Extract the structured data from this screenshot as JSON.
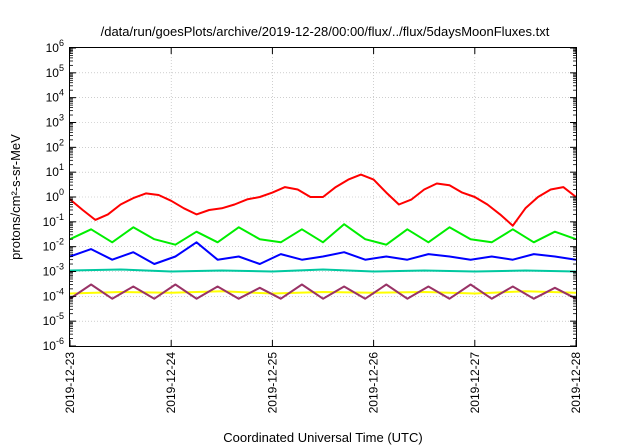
{
  "chart_data": {
    "type": "line",
    "title": "/data/run/goesPlots/archive/2019-12-28/00:00/flux/../flux/5daysMoonFluxes.txt",
    "xlabel": "Coordinated Universal Time (UTC)",
    "ylabel": "protons/cm²-s-sr-MeV",
    "y_scale": "log",
    "ylim": [
      1e-06,
      1000000.0
    ],
    "xlim": [
      "2019-12-23",
      "2019-12-28"
    ],
    "x_ticks": [
      "2019-12-23",
      "2019-12-24",
      "2019-12-25",
      "2019-12-26",
      "2019-12-27",
      "2019-12-28"
    ],
    "y_ticks": [
      {
        "base": "10",
        "exp": "-6"
      },
      {
        "base": "10",
        "exp": "-5"
      },
      {
        "base": "10",
        "exp": "-4"
      },
      {
        "base": "10",
        "exp": "-3"
      },
      {
        "base": "10",
        "exp": "-2"
      },
      {
        "base": "10",
        "exp": "-1"
      },
      {
        "base": "10",
        "exp": "0"
      },
      {
        "base": "10",
        "exp": "1"
      },
      {
        "base": "10",
        "exp": "2"
      },
      {
        "base": "10",
        "exp": "3"
      },
      {
        "base": "10",
        "exp": "4"
      },
      {
        "base": "10",
        "exp": "5"
      },
      {
        "base": "10",
        "exp": "6"
      }
    ],
    "grid": true,
    "legend": "none",
    "series": [
      {
        "color": "#ff0000",
        "x": [
          "2019-12-23 00:00",
          "2019-12-23 03:00",
          "2019-12-23 06:00",
          "2019-12-23 09:00",
          "2019-12-23 12:00",
          "2019-12-23 15:00",
          "2019-12-23 18:00",
          "2019-12-23 21:00",
          "2019-12-24 00:00",
          "2019-12-24 03:00",
          "2019-12-24 06:00",
          "2019-12-24 09:00",
          "2019-12-24 12:00",
          "2019-12-24 15:00",
          "2019-12-24 18:00",
          "2019-12-24 21:00",
          "2019-12-25 00:00",
          "2019-12-25 03:00",
          "2019-12-25 06:00",
          "2019-12-25 09:00",
          "2019-12-25 12:00",
          "2019-12-25 15:00",
          "2019-12-25 18:00",
          "2019-12-25 21:00",
          "2019-12-26 00:00",
          "2019-12-26 03:00",
          "2019-12-26 06:00",
          "2019-12-26 09:00",
          "2019-12-26 12:00",
          "2019-12-26 15:00",
          "2019-12-26 18:00",
          "2019-12-26 21:00",
          "2019-12-27 00:00",
          "2019-12-27 03:00",
          "2019-12-27 06:00",
          "2019-12-27 09:00",
          "2019-12-27 12:00",
          "2019-12-27 15:00",
          "2019-12-27 18:00",
          "2019-12-27 21:00",
          "2019-12-28 00:00"
        ],
        "y": [
          0.8,
          0.3,
          0.12,
          0.2,
          0.5,
          0.9,
          1.4,
          1.2,
          0.7,
          0.35,
          0.2,
          0.3,
          0.35,
          0.5,
          0.8,
          1.0,
          1.5,
          2.5,
          2.0,
          1.0,
          1.0,
          2.5,
          5.0,
          8.0,
          5.0,
          1.5,
          0.5,
          0.8,
          2.0,
          3.5,
          3.0,
          1.5,
          1.0,
          0.5,
          0.2,
          0.07,
          0.35,
          1.0,
          2.0,
          2.5,
          1.0
        ]
      },
      {
        "color": "#00ee00",
        "x": [
          "2019-12-23 00:00",
          "2019-12-23 05:00",
          "2019-12-23 10:00",
          "2019-12-23 15:00",
          "2019-12-23 20:00",
          "2019-12-24 01:00",
          "2019-12-24 06:00",
          "2019-12-24 11:00",
          "2019-12-24 16:00",
          "2019-12-24 21:00",
          "2019-12-25 02:00",
          "2019-12-25 07:00",
          "2019-12-25 12:00",
          "2019-12-25 17:00",
          "2019-12-25 22:00",
          "2019-12-26 03:00",
          "2019-12-26 08:00",
          "2019-12-26 13:00",
          "2019-12-26 18:00",
          "2019-12-26 23:00",
          "2019-12-27 04:00",
          "2019-12-27 09:00",
          "2019-12-27 14:00",
          "2019-12-27 19:00",
          "2019-12-28 00:00"
        ],
        "y": [
          0.02,
          0.05,
          0.015,
          0.06,
          0.02,
          0.012,
          0.04,
          0.015,
          0.06,
          0.02,
          0.015,
          0.05,
          0.015,
          0.08,
          0.02,
          0.012,
          0.05,
          0.015,
          0.06,
          0.02,
          0.015,
          0.05,
          0.015,
          0.04,
          0.02
        ]
      },
      {
        "color": "#0000ff",
        "x": [
          "2019-12-23 00:00",
          "2019-12-23 05:00",
          "2019-12-23 10:00",
          "2019-12-23 15:00",
          "2019-12-23 20:00",
          "2019-12-24 01:00",
          "2019-12-24 06:00",
          "2019-12-24 11:00",
          "2019-12-24 16:00",
          "2019-12-24 21:00",
          "2019-12-25 02:00",
          "2019-12-25 07:00",
          "2019-12-25 12:00",
          "2019-12-25 17:00",
          "2019-12-25 22:00",
          "2019-12-26 03:00",
          "2019-12-26 08:00",
          "2019-12-26 13:00",
          "2019-12-26 18:00",
          "2019-12-26 23:00",
          "2019-12-27 04:00",
          "2019-12-27 09:00",
          "2019-12-27 14:00",
          "2019-12-27 19:00",
          "2019-12-28 00:00"
        ],
        "y": [
          0.004,
          0.008,
          0.003,
          0.006,
          0.002,
          0.004,
          0.015,
          0.003,
          0.004,
          0.002,
          0.005,
          0.003,
          0.004,
          0.006,
          0.003,
          0.004,
          0.003,
          0.005,
          0.004,
          0.003,
          0.004,
          0.003,
          0.005,
          0.004,
          0.003
        ]
      },
      {
        "color": "#00c8a0",
        "x": [
          "2019-12-23 00:00",
          "2019-12-23 12:00",
          "2019-12-24 00:00",
          "2019-12-24 12:00",
          "2019-12-25 00:00",
          "2019-12-25 12:00",
          "2019-12-26 00:00",
          "2019-12-26 12:00",
          "2019-12-27 00:00",
          "2019-12-27 12:00",
          "2019-12-28 00:00"
        ],
        "y": [
          0.0011,
          0.0012,
          0.001,
          0.0011,
          0.001,
          0.0012,
          0.001,
          0.0011,
          0.001,
          0.0011,
          0.001
        ]
      },
      {
        "color": "#ffff00",
        "x": [
          "2019-12-23 00:00",
          "2019-12-23 12:00",
          "2019-12-24 00:00",
          "2019-12-24 12:00",
          "2019-12-25 00:00",
          "2019-12-25 12:00",
          "2019-12-26 00:00",
          "2019-12-26 12:00",
          "2019-12-27 00:00",
          "2019-12-27 12:00",
          "2019-12-28 00:00"
        ],
        "y": [
          0.00013,
          0.00015,
          0.00014,
          0.00016,
          0.00013,
          0.00015,
          0.00014,
          0.00015,
          0.00013,
          0.00016,
          0.00014
        ]
      },
      {
        "color": "#993366",
        "x": [
          "2019-12-23 00:00",
          "2019-12-23 05:00",
          "2019-12-23 10:00",
          "2019-12-23 15:00",
          "2019-12-23 20:00",
          "2019-12-24 01:00",
          "2019-12-24 06:00",
          "2019-12-24 11:00",
          "2019-12-24 16:00",
          "2019-12-24 21:00",
          "2019-12-25 02:00",
          "2019-12-25 07:00",
          "2019-12-25 12:00",
          "2019-12-25 17:00",
          "2019-12-25 22:00",
          "2019-12-26 03:00",
          "2019-12-26 08:00",
          "2019-12-26 13:00",
          "2019-12-26 18:00",
          "2019-12-26 23:00",
          "2019-12-27 04:00",
          "2019-12-27 09:00",
          "2019-12-27 14:00",
          "2019-12-27 19:00",
          "2019-12-28 00:00"
        ],
        "y": [
          8e-05,
          0.0003,
          8e-05,
          0.00025,
          8e-05,
          0.0003,
          8e-05,
          0.00025,
          8e-05,
          0.00022,
          8e-05,
          0.0003,
          8e-05,
          0.00025,
          8e-05,
          0.0003,
          8e-05,
          0.00025,
          8e-05,
          0.0003,
          8e-05,
          0.00025,
          8e-05,
          0.00022,
          8e-05
        ]
      }
    ]
  }
}
